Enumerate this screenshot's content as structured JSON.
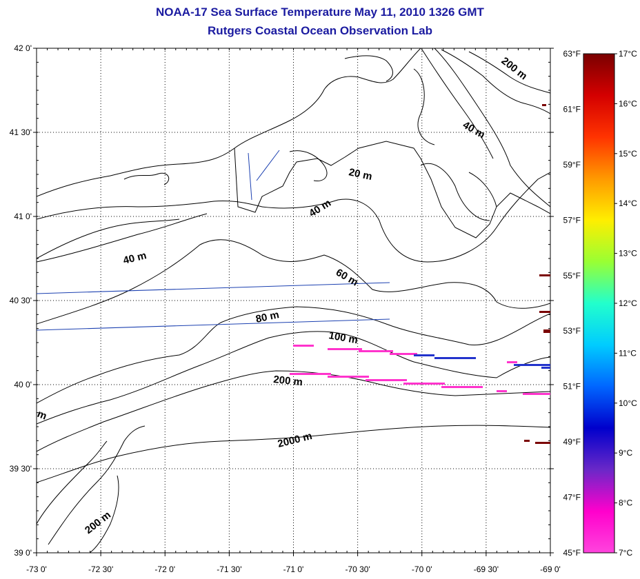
{
  "title_line1": "NOAA-17 Sea Surface Temperature May 11, 2010 1326 GMT",
  "title_line2": "Rutgers Coastal Ocean Observation Lab",
  "lat_labels": [
    "42 0'",
    "41 30'",
    "41 0'",
    "40 30'",
    "40 0'",
    "39 30'",
    "39 0'"
  ],
  "lon_labels": [
    "-73 0'",
    "-72 30'",
    "-72 0'",
    "-71 30'",
    "-71 0'",
    "-70 30'",
    "-70 0'",
    "-69 30'",
    "-69 0'"
  ],
  "fahrenheit_labels": [
    "63°F",
    "61°F",
    "59°F",
    "57°F",
    "55°F",
    "53°F",
    "51°F",
    "49°F",
    "47°F",
    "45°F"
  ],
  "celsius_labels": [
    "17°C",
    "16°C",
    "15°C",
    "14°C",
    "13°C",
    "12°C",
    "11°C",
    "10°C",
    "9°C",
    "8°C",
    "7°C"
  ],
  "colorbar_colors": [
    "#7a0000",
    "#d40000",
    "#ff3300",
    "#ff9900",
    "#ffee00",
    "#99ff33",
    "#22ffcc",
    "#00ccff",
    "#0066ff",
    "#0000cc",
    "#6a28c8",
    "#ff00cc",
    "#ff44dd"
  ],
  "contour_labels": [
    "200 m",
    "40 m",
    "20 m",
    "40 m",
    "40 m",
    "60 m",
    "80 m",
    "100 m",
    "200 m",
    "2000 m",
    "200 m",
    "m"
  ]
}
